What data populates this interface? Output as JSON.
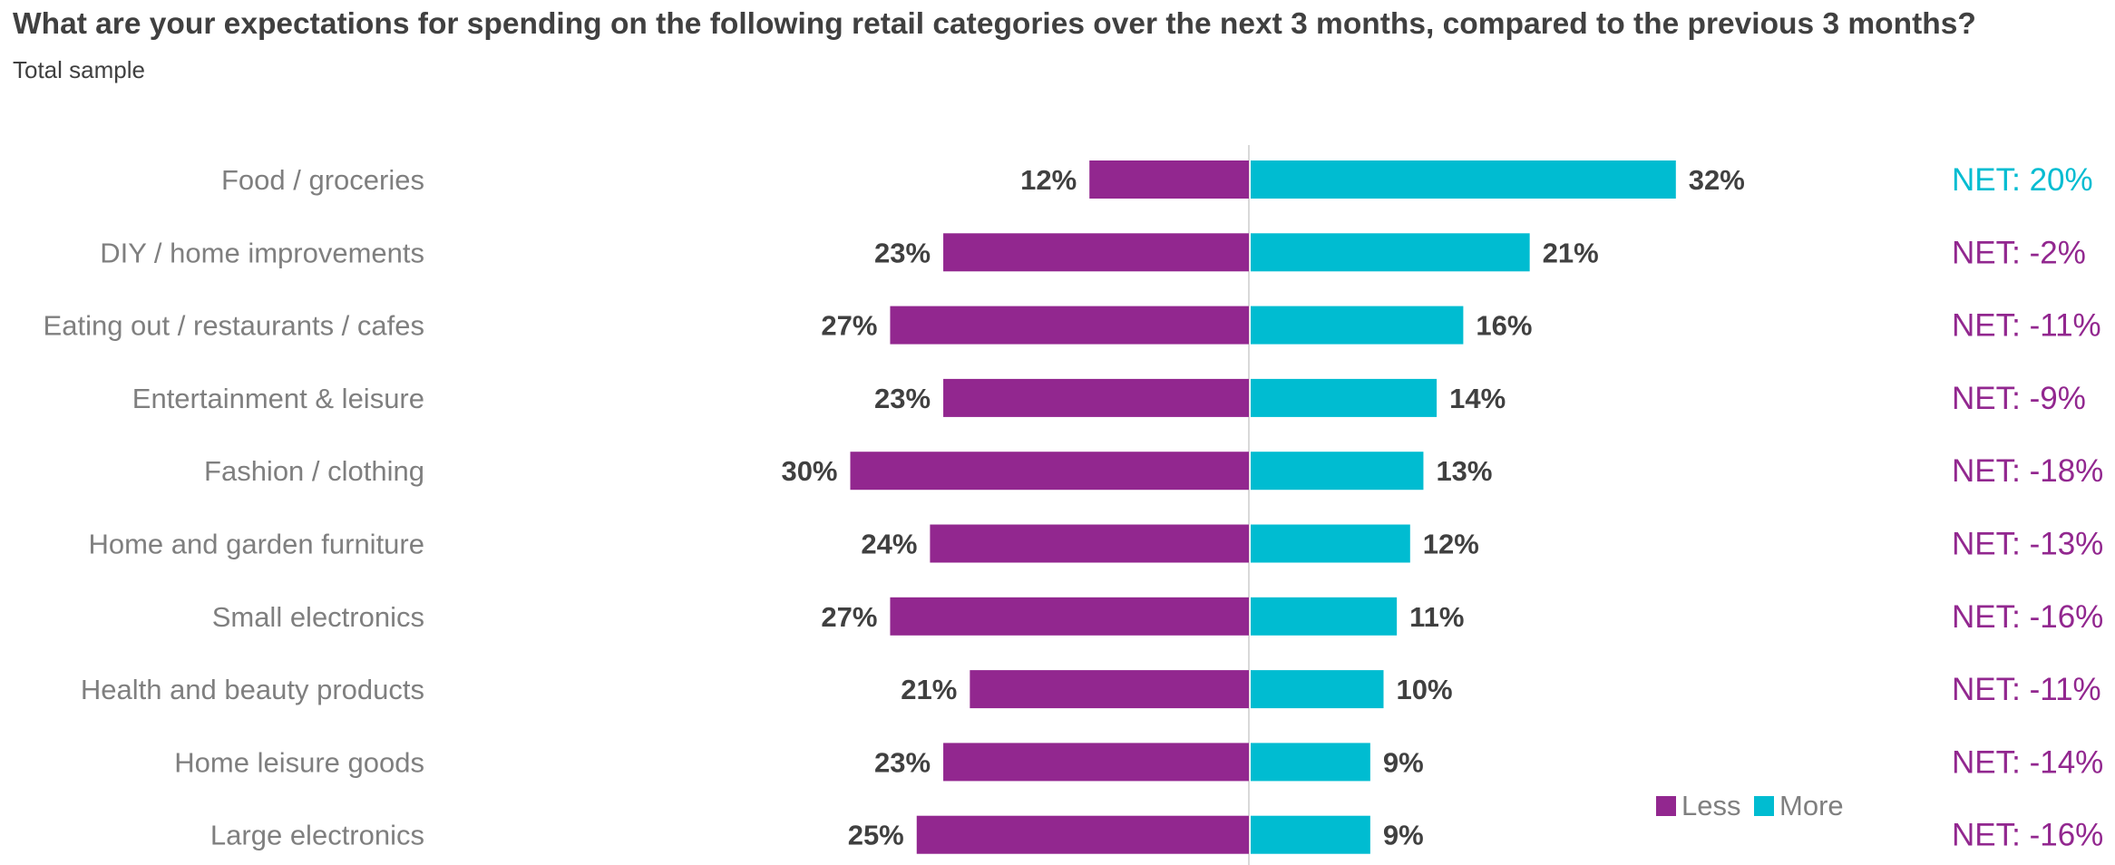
{
  "title": "What are your expectations for spending on the following retail categories over the next 3 months, compared to the previous 3 months?",
  "subtitle": "Total sample",
  "colors": {
    "less": "#92278F",
    "more": "#00BCD1",
    "label": "#404040",
    "category": "#7F7F7F",
    "axis": "#D9D9D9"
  },
  "chart_data": {
    "type": "bar",
    "orientation": "horizontal",
    "diverging": true,
    "categories": [
      "Food / groceries",
      "DIY / home improvements",
      "Eating out / restaurants / cafes",
      "Entertainment & leisure",
      "Fashion / clothing",
      "Home and garden furniture",
      "Small electronics",
      "Health and beauty products",
      "Home leisure goods",
      "Large electronics"
    ],
    "series": [
      {
        "name": "Less",
        "values": [
          12,
          23,
          27,
          23,
          30,
          24,
          27,
          21,
          23,
          25
        ],
        "labels": [
          "12%",
          "23%",
          "27%",
          "23%",
          "30%",
          "24%",
          "27%",
          "21%",
          "23%",
          "25%"
        ]
      },
      {
        "name": "More",
        "values": [
          32,
          21,
          16,
          14,
          13,
          12,
          11,
          10,
          9,
          9
        ],
        "labels": [
          "32%",
          "21%",
          "16%",
          "14%",
          "13%",
          "12%",
          "11%",
          "10%",
          "9%",
          "9%"
        ]
      }
    ],
    "net": [
      {
        "text": "NET: 20%",
        "value": 20
      },
      {
        "text": "NET: -2%",
        "value": -2
      },
      {
        "text": "NET: -11%",
        "value": -11
      },
      {
        "text": "NET: -9%",
        "value": -9
      },
      {
        "text": "NET: -18%",
        "value": -18
      },
      {
        "text": "NET: -13%",
        "value": -13
      },
      {
        "text": "NET: -16%",
        "value": -16
      },
      {
        "text": "NET: -11%",
        "value": -11
      },
      {
        "text": "NET: -14%",
        "value": -14
      },
      {
        "text": "NET: -16%",
        "value": -16
      }
    ],
    "legend": {
      "position": "bottom-right",
      "entries": [
        "Less",
        "More"
      ]
    },
    "grid": false
  }
}
